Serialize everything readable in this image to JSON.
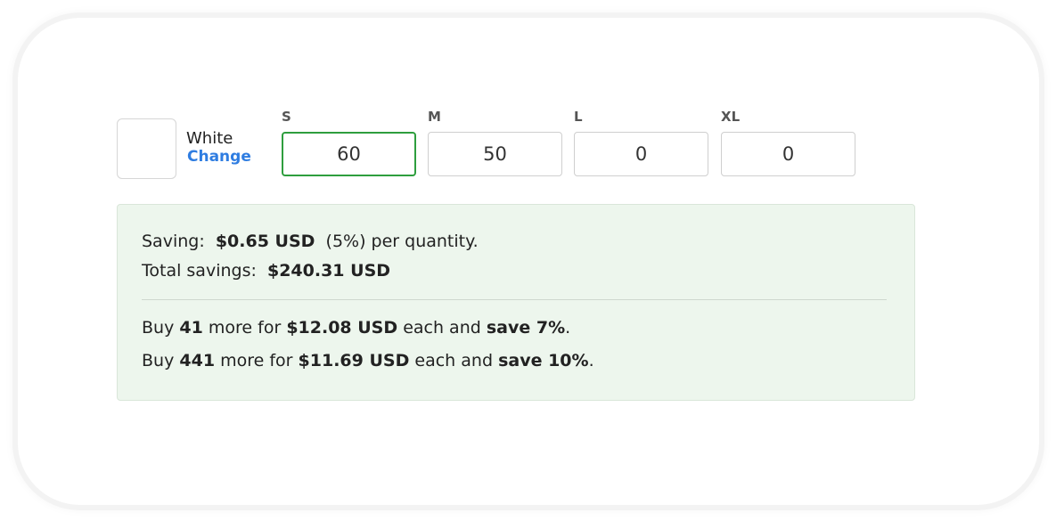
{
  "color": {
    "name": "White",
    "change_label": "Change",
    "swatch": "#ffffff"
  },
  "sizes": [
    {
      "label": "S",
      "value": "60",
      "active": true
    },
    {
      "label": "M",
      "value": "50"
    },
    {
      "label": "L",
      "value": "0"
    },
    {
      "label": "XL",
      "value": "0"
    }
  ],
  "savings": {
    "saving_label": "Saving:",
    "saving_amount": "$0.65 USD",
    "saving_pct": "(5%) per quantity.",
    "total_label": "Total savings:",
    "total_amount": "$240.31 USD",
    "tiers": [
      {
        "buy": "Buy",
        "qty": "41",
        "more_for": "more for",
        "price": "$12.08 USD",
        "each_and": "each and",
        "save": "save 7%",
        "end": "."
      },
      {
        "buy": "Buy",
        "qty": "441",
        "more_for": "more for",
        "price": "$11.69 USD",
        "each_and": "each and",
        "save": "save 10%",
        "end": "."
      }
    ]
  },
  "colors": {
    "accent_link": "#2f7de1",
    "active_border": "#2e9e3e",
    "savings_bg": "#edf6ed"
  }
}
